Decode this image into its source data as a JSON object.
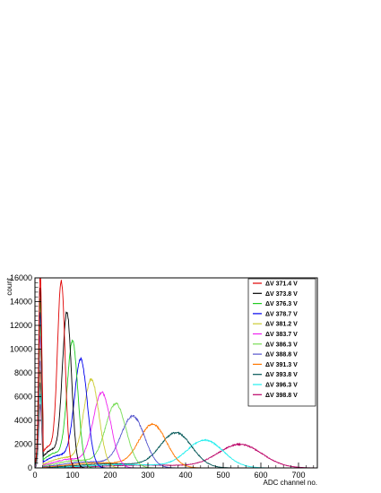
{
  "chart_data": {
    "type": "line",
    "title": "",
    "xlabel": "ADC channel no.",
    "ylabel": "count",
    "xlim": [
      0,
      750
    ],
    "ylim": [
      0,
      16000
    ],
    "x_ticks": [
      0,
      100,
      200,
      300,
      400,
      500,
      600,
      700
    ],
    "y_ticks": [
      0,
      2000,
      4000,
      6000,
      8000,
      10000,
      12000,
      14000,
      16000
    ],
    "legend_position": "top-right",
    "grid": false,
    "series": [
      {
        "name": "ΔV 371.4 V",
        "color": "#e00000",
        "peak_x": 70,
        "peak_y": 15100,
        "sigma": 10
      },
      {
        "name": "ΔV 373.8 V",
        "color": "#000000",
        "peak_x": 85,
        "peak_y": 12600,
        "sigma": 12
      },
      {
        "name": "ΔV 376.3 V",
        "color": "#22cc22",
        "peak_x": 100,
        "peak_y": 10300,
        "sigma": 14
      },
      {
        "name": "ΔV 378.7 V",
        "color": "#0000ee",
        "peak_x": 122,
        "peak_y": 8800,
        "sigma": 17
      },
      {
        "name": "ΔV 381.2 V",
        "color": "#cccc33",
        "peak_x": 150,
        "peak_y": 7200,
        "sigma": 20
      },
      {
        "name": "ΔV 383.7 V",
        "color": "#ee22ee",
        "peak_x": 178,
        "peak_y": 6150,
        "sigma": 23
      },
      {
        "name": "ΔV 386.3 V",
        "color": "#77dd55",
        "peak_x": 215,
        "peak_y": 5250,
        "sigma": 27
      },
      {
        "name": "ΔV 388.8 V",
        "color": "#5555cc",
        "peak_x": 260,
        "peak_y": 4250,
        "sigma": 31
      },
      {
        "name": "ΔV 391.3 V",
        "color": "#ff7700",
        "peak_x": 313,
        "peak_y": 3600,
        "sigma": 36
      },
      {
        "name": "ΔV 393.8 V",
        "color": "#005555",
        "peak_x": 375,
        "peak_y": 2900,
        "sigma": 42
      },
      {
        "name": "ΔV 396.3 V",
        "color": "#22eeee",
        "peak_x": 452,
        "peak_y": 2300,
        "sigma": 48
      },
      {
        "name": "ΔV 398.8 V",
        "color": "#bb0066",
        "peak_x": 545,
        "peak_y": 1950,
        "sigma": 58
      }
    ]
  }
}
